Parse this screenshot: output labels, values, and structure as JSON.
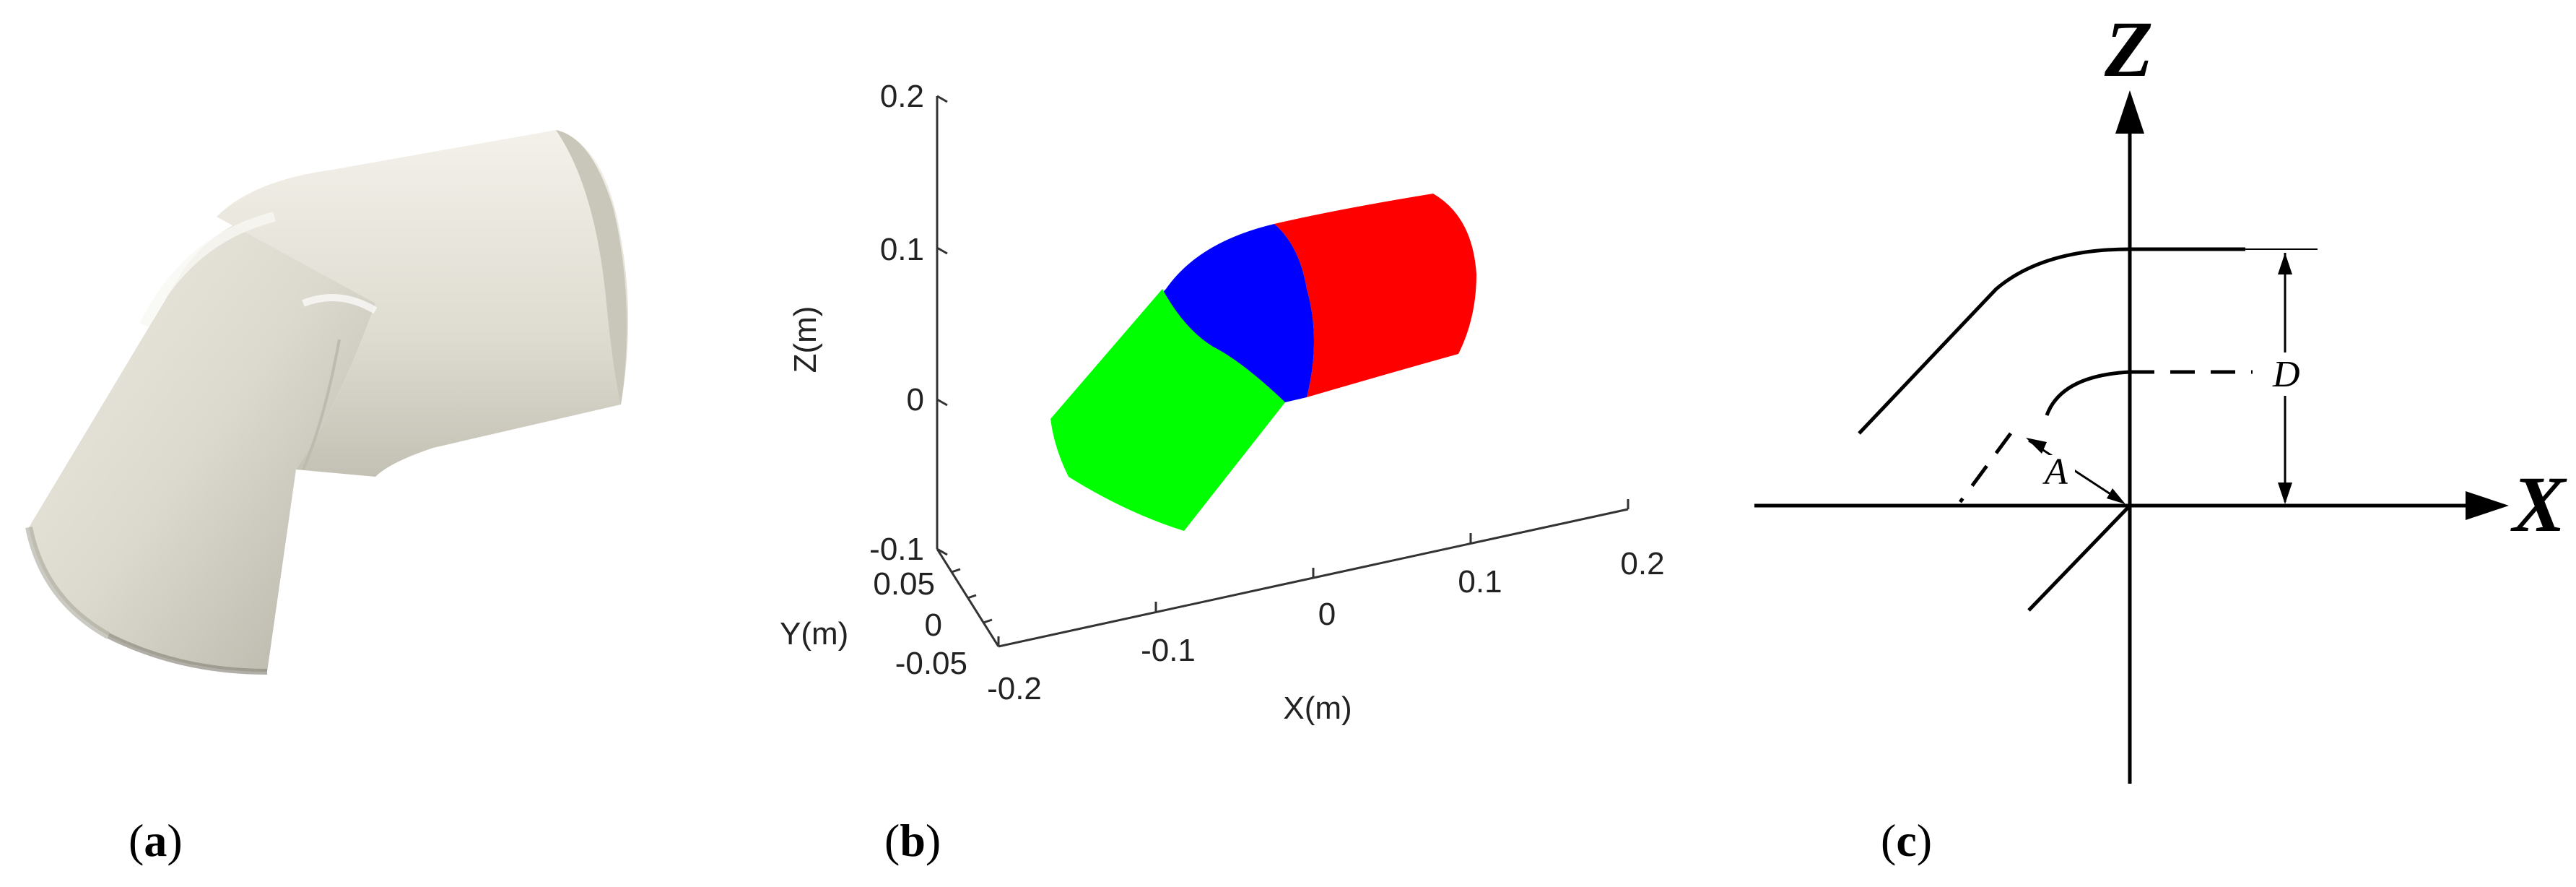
{
  "panels": {
    "a": {
      "label_open": "(",
      "label_letter": "a",
      "label_close": ")",
      "content": "photograph of a 45-degree PVC pipe elbow"
    },
    "b": {
      "label_open": "(",
      "label_letter": "b",
      "label_close": ")",
      "axes": {
        "xlabel": "X(m)",
        "ylabel": "Y(m)",
        "zlabel": "Z(m)",
        "x_ticks": [
          "-0.2",
          "-0.1",
          "0",
          "0.1",
          "0.2"
        ],
        "y_ticks": [
          "0.05",
          "0",
          "-0.05"
        ],
        "z_ticks": [
          "0.2",
          "0.1",
          "0",
          "-0.1"
        ]
      },
      "segment_colors": {
        "straight_left": "#00ff00",
        "bend": "#0000ff",
        "straight_right": "#ff0000"
      }
    },
    "c": {
      "label_open": "(",
      "label_letter": "c",
      "label_close": ")",
      "axis_z": "Z",
      "axis_x": "X",
      "dim_d": "D",
      "dim_a": "A"
    }
  },
  "colors": {
    "pipe_body": "#dedbd0",
    "pipe_shadow": "#b9b6aa",
    "pipe_highlight": "#f4f2ec"
  }
}
